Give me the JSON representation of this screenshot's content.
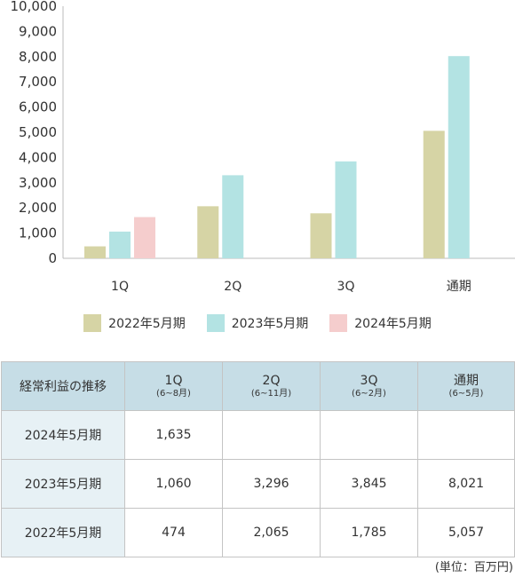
{
  "chart_data": {
    "type": "bar",
    "categories": [
      "1Q",
      "2Q",
      "3Q",
      "通期"
    ],
    "series": [
      {
        "name": "2022年5月期",
        "color": "#d6d4a5",
        "values": [
          474,
          2065,
          1785,
          5057
        ]
      },
      {
        "name": "2023年5月期",
        "color": "#b3e3e3",
        "values": [
          1060,
          3296,
          3845,
          8021
        ]
      },
      {
        "name": "2024年5月期",
        "color": "#f5cdcd",
        "values": [
          1635,
          null,
          null,
          null
        ]
      }
    ],
    "yticks": [
      "0",
      "1,000",
      "2,000",
      "3,000",
      "4,000",
      "5,000",
      "6,000",
      "7,000",
      "8,000",
      "9,000",
      "10,000"
    ],
    "ylim": [
      0,
      10000
    ],
    "grid": false,
    "legend_position": "bottom",
    "axis_color": "#bbbbbb"
  },
  "table": {
    "corner_label": "経常利益の推移",
    "columns": [
      {
        "label": "1Q",
        "sub": "(6~8月)"
      },
      {
        "label": "2Q",
        "sub": "(6~11月)"
      },
      {
        "label": "3Q",
        "sub": "(6~2月)"
      },
      {
        "label": "通期",
        "sub": "(6~5月)"
      }
    ],
    "rows": [
      {
        "label": "2024年5月期",
        "values": [
          "1,635",
          "",
          "",
          ""
        ]
      },
      {
        "label": "2023年5月期",
        "values": [
          "1,060",
          "3,296",
          "3,845",
          "8,021"
        ]
      },
      {
        "label": "2022年5月期",
        "values": [
          "474",
          "2,065",
          "1,785",
          "5,057"
        ]
      }
    ]
  },
  "unit_note": "(単位：百万円)"
}
